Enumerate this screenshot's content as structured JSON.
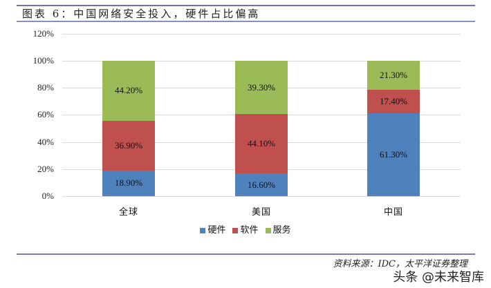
{
  "header": {
    "title": "图表 6：中国网络安全投入，硬件占比偏高"
  },
  "colors": {
    "hardware": "#4F81BD",
    "software": "#C0504D",
    "services": "#9BBB59",
    "rule": "#6F6FA6",
    "grid": "#D9D9D9"
  },
  "axis": {
    "y_ticks": [
      "0%",
      "20%",
      "40%",
      "60%",
      "80%",
      "100%",
      "120%"
    ]
  },
  "legend": {
    "items": [
      {
        "label": "硬件",
        "color": "#4F81BD"
      },
      {
        "label": "软件",
        "color": "#C0504D"
      },
      {
        "label": "服务",
        "color": "#9BBB59"
      }
    ]
  },
  "footer": {
    "source": "资料来源：IDC，太平洋证券整理",
    "watermark": "头条 @未来智库"
  },
  "chart_data": {
    "type": "bar",
    "stacked": true,
    "title": "图表 6：中国网络安全投入，硬件占比偏高",
    "xlabel": "",
    "ylabel": "",
    "ylim": [
      0,
      120
    ],
    "y_tick_labels": [
      "0%",
      "20%",
      "40%",
      "60%",
      "80%",
      "100%",
      "120%"
    ],
    "grid": true,
    "legend_position": "bottom",
    "categories": [
      "全球",
      "美国",
      "中国"
    ],
    "series": [
      {
        "name": "硬件",
        "color": "#4F81BD",
        "values": [
          18.9,
          16.6,
          61.3
        ],
        "labels": [
          "18.90%",
          "16.60%",
          "61.30%"
        ]
      },
      {
        "name": "软件",
        "color": "#C0504D",
        "values": [
          36.9,
          44.1,
          17.4
        ],
        "labels": [
          "36.90%",
          "44.10%",
          "17.40%"
        ]
      },
      {
        "name": "服务",
        "color": "#9BBB59",
        "values": [
          44.2,
          39.3,
          21.3
        ],
        "labels": [
          "44.20%",
          "39.30%",
          "21.30%"
        ]
      }
    ],
    "source": "资料来源：IDC，太平洋证券整理"
  }
}
